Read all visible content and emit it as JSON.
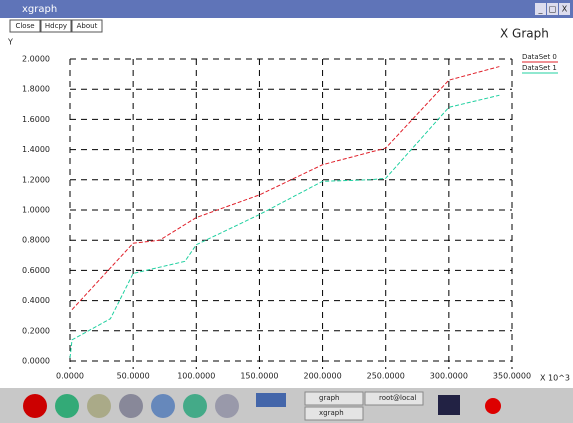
{
  "window": {
    "title": "xgraph",
    "buttons": [
      "Close",
      "Hdcpy",
      "About"
    ],
    "controls": [
      "_",
      "□",
      "X"
    ]
  },
  "chart_data": {
    "type": "line",
    "title": "X Graph",
    "ylabel": "Y",
    "xlabel": "X 10^3",
    "xlim": [
      0,
      350
    ],
    "ylim": [
      0,
      2.0
    ],
    "xticks": [
      {
        "value": 0,
        "label": "0.0000"
      },
      {
        "value": 50,
        "label": "50.0000"
      },
      {
        "value": 100,
        "label": "100.0000"
      },
      {
        "value": 150,
        "label": "150.0000"
      },
      {
        "value": 200,
        "label": "200.0000"
      },
      {
        "value": 250,
        "label": "250.0000"
      },
      {
        "value": 300,
        "label": "300.0000"
      },
      {
        "value": 350,
        "label": "350.0000"
      }
    ],
    "yticks": [
      {
        "value": 0,
        "label": "0.0000"
      },
      {
        "value": 0.2,
        "label": "0.2000"
      },
      {
        "value": 0.4,
        "label": "0.4000"
      },
      {
        "value": 0.6,
        "label": "0.6000"
      },
      {
        "value": 0.8,
        "label": "0.8000"
      },
      {
        "value": 1.0,
        "label": "1.0000"
      },
      {
        "value": 1.2,
        "label": "1.2000"
      },
      {
        "value": 1.4,
        "label": "1.4000"
      },
      {
        "value": 1.6,
        "label": "1.6000"
      },
      {
        "value": 1.8,
        "label": "1.8000"
      },
      {
        "value": 2.0,
        "label": "2.0000"
      }
    ],
    "grid": true,
    "series": [
      {
        "name": "DataSet 0",
        "color": "#e0202a",
        "x": [
          1.6,
          50,
          71,
          100,
          150,
          200,
          250,
          300,
          340
        ],
        "values": [
          0.34,
          0.78,
          0.8,
          0.95,
          1.1,
          1.3,
          1.41,
          1.86,
          1.95
        ]
      },
      {
        "name": "DataSet 1",
        "color": "#20d0a0",
        "x": [
          0,
          1.6,
          32,
          50,
          91,
          100,
          150,
          200,
          237,
          250,
          300,
          340
        ],
        "values": [
          0.02,
          0.14,
          0.28,
          0.58,
          0.66,
          0.77,
          0.97,
          1.19,
          1.2,
          1.21,
          1.68,
          1.76
        ]
      }
    ]
  },
  "taskbar": {
    "items": [
      "graph",
      "root@local",
      "xgraph"
    ]
  }
}
